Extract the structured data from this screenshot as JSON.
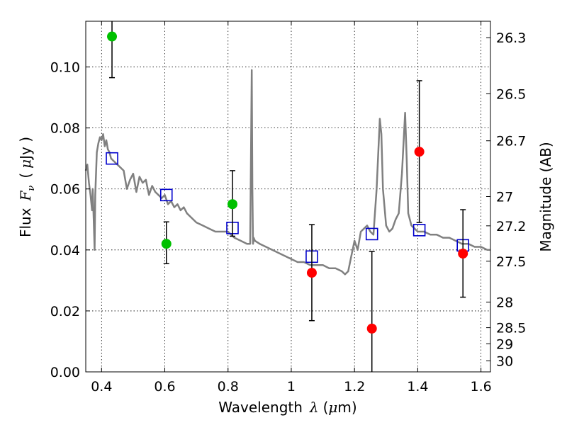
{
  "chart_data": {
    "type": "scatter",
    "xlabel": "Wavelength",
    "xlabel_math": "λ",
    "xlabel_unit_open": "(",
    "xlabel_unit_math": "μ",
    "xlabel_unit_rest": "m)",
    "ylabel": "Flux",
    "ylabel_math": "F",
    "ylabel_math_sub": "ν",
    "ylabel_unit_open": "(",
    "ylabel_unit_math": "μ",
    "ylabel_unit_rest": "Jy )",
    "y2label": "Magnitude (AB)",
    "xlim": [
      0.35,
      1.63
    ],
    "ylim": [
      0.0,
      0.115
    ],
    "grid": true,
    "x_ticks": [
      0.4,
      0.6,
      0.8,
      1.0,
      1.2,
      1.4,
      1.6
    ],
    "x_tick_labels": [
      "0.4",
      "0.6",
      "0.8",
      "1",
      "1.2",
      "1.4",
      "1.6"
    ],
    "y_ticks": [
      0.0,
      0.02,
      0.04,
      0.06,
      0.08,
      0.1
    ],
    "y_tick_labels": [
      "0.00",
      "0.02",
      "0.04",
      "0.06",
      "0.08",
      "0.10"
    ],
    "y2_ticks": [
      {
        "flux": 0.1096,
        "label": "26.3"
      },
      {
        "flux": 0.0912,
        "label": "26.5"
      },
      {
        "flux": 0.0758,
        "label": "26.7"
      },
      {
        "flux": 0.0575,
        "label": "27"
      },
      {
        "flux": 0.0479,
        "label": "27.2"
      },
      {
        "flux": 0.0363,
        "label": "27.5"
      },
      {
        "flux": 0.0229,
        "label": "28"
      },
      {
        "flux": 0.0145,
        "label": "28.5"
      },
      {
        "flux": 0.0092,
        "label": "29"
      },
      {
        "flux": 0.0036,
        "label": "30"
      }
    ],
    "colors": {
      "model": "#808080",
      "green_points": "#00c000",
      "red_points": "#ff0000",
      "model_photometry": "#0000cc",
      "errorbars": "#000000"
    },
    "model_spectrum": {
      "x": [
        0.35,
        0.355,
        0.36,
        0.365,
        0.37,
        0.372,
        0.375,
        0.378,
        0.38,
        0.385,
        0.39,
        0.395,
        0.4,
        0.405,
        0.41,
        0.415,
        0.42,
        0.425,
        0.43,
        0.44,
        0.45,
        0.46,
        0.47,
        0.48,
        0.49,
        0.5,
        0.51,
        0.52,
        0.53,
        0.54,
        0.55,
        0.56,
        0.57,
        0.58,
        0.59,
        0.6,
        0.61,
        0.62,
        0.63,
        0.64,
        0.65,
        0.66,
        0.67,
        0.68,
        0.7,
        0.72,
        0.74,
        0.76,
        0.78,
        0.8,
        0.82,
        0.84,
        0.86,
        0.87,
        0.875,
        0.877,
        0.879,
        0.881,
        0.885,
        0.9,
        0.92,
        0.94,
        0.96,
        0.98,
        1.0,
        1.02,
        1.04,
        1.06,
        1.08,
        1.1,
        1.12,
        1.14,
        1.16,
        1.17,
        1.18,
        1.19,
        1.2,
        1.21,
        1.22,
        1.23,
        1.24,
        1.25,
        1.26,
        1.27,
        1.28,
        1.285,
        1.29,
        1.3,
        1.31,
        1.32,
        1.33,
        1.34,
        1.35,
        1.36,
        1.365,
        1.37,
        1.38,
        1.39,
        1.4,
        1.42,
        1.44,
        1.46,
        1.48,
        1.5,
        1.52,
        1.54,
        1.56,
        1.58,
        1.6,
        1.62,
        1.63
      ],
      "y": [
        0.066,
        0.068,
        0.062,
        0.058,
        0.053,
        0.06,
        0.05,
        0.04,
        0.058,
        0.072,
        0.075,
        0.077,
        0.076,
        0.078,
        0.074,
        0.076,
        0.073,
        0.072,
        0.07,
        0.069,
        0.068,
        0.067,
        0.066,
        0.06,
        0.063,
        0.065,
        0.059,
        0.064,
        0.062,
        0.063,
        0.058,
        0.061,
        0.059,
        0.058,
        0.057,
        0.058,
        0.055,
        0.056,
        0.054,
        0.055,
        0.053,
        0.054,
        0.052,
        0.051,
        0.049,
        0.048,
        0.047,
        0.046,
        0.046,
        0.046,
        0.044,
        0.043,
        0.042,
        0.042,
        0.099,
        0.06,
        0.042,
        0.044,
        0.043,
        0.042,
        0.041,
        0.04,
        0.039,
        0.038,
        0.037,
        0.036,
        0.036,
        0.035,
        0.035,
        0.035,
        0.034,
        0.034,
        0.033,
        0.032,
        0.033,
        0.038,
        0.043,
        0.04,
        0.046,
        0.047,
        0.048,
        0.046,
        0.045,
        0.06,
        0.083,
        0.078,
        0.06,
        0.048,
        0.046,
        0.047,
        0.05,
        0.052,
        0.065,
        0.085,
        0.07,
        0.052,
        0.048,
        0.047,
        0.046,
        0.046,
        0.045,
        0.045,
        0.044,
        0.044,
        0.043,
        0.042,
        0.042,
        0.041,
        0.041,
        0.04,
        0.04
      ]
    },
    "observed_green": [
      {
        "x": 0.433,
        "y": 0.11,
        "yerr_low": 0.0965,
        "yerr_high": 0.115
      },
      {
        "x": 0.605,
        "y": 0.042,
        "yerr_low": 0.0355,
        "yerr_high": 0.0492
      },
      {
        "x": 0.814,
        "y": 0.055,
        "yerr_low": 0.0445,
        "yerr_high": 0.066
      }
    ],
    "observed_red": [
      {
        "x": 1.065,
        "y": 0.0325,
        "yerr_low": 0.0168,
        "yerr_high": 0.0483
      },
      {
        "x": 1.255,
        "y": 0.0142,
        "yerr_low": 0.0,
        "yerr_high": 0.0395
      },
      {
        "x": 1.405,
        "y": 0.0722,
        "yerr_low": 0.049,
        "yerr_high": 0.0955
      },
      {
        "x": 1.543,
        "y": 0.0388,
        "yerr_low": 0.0245,
        "yerr_high": 0.0532
      }
    ],
    "model_photometry": [
      {
        "x": 0.433,
        "y": 0.07
      },
      {
        "x": 0.605,
        "y": 0.058
      },
      {
        "x": 0.814,
        "y": 0.0472
      },
      {
        "x": 1.065,
        "y": 0.0378
      },
      {
        "x": 1.255,
        "y": 0.0452
      },
      {
        "x": 1.405,
        "y": 0.0465
      },
      {
        "x": 1.543,
        "y": 0.0415
      }
    ]
  }
}
